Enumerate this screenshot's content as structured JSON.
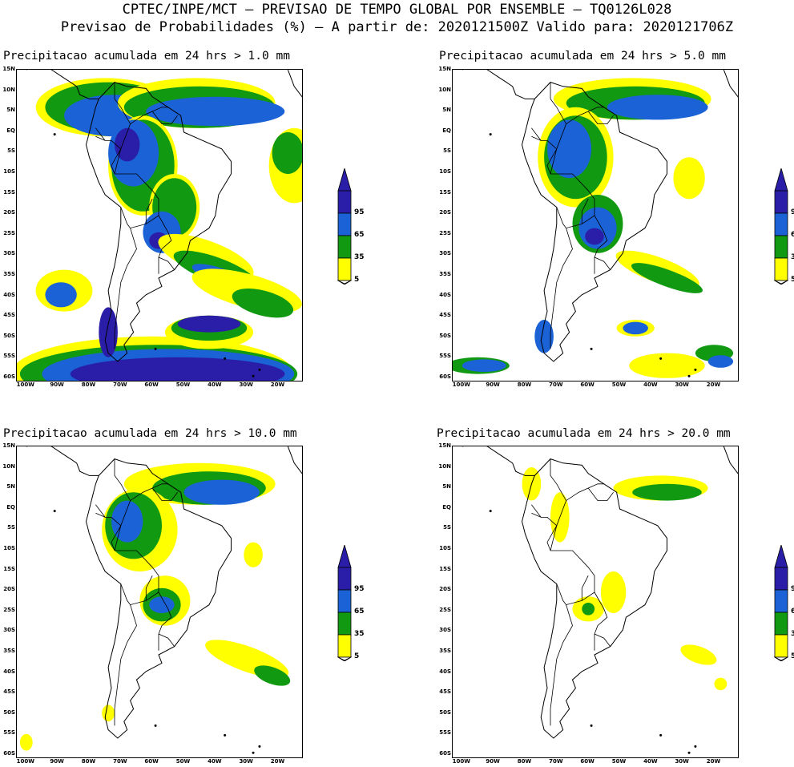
{
  "header": {
    "line1": "CPTEC/INPE/MCT — PREVISAO DE TEMPO GLOBAL POR ENSEMBLE — TQ0126L028",
    "line2": "Previsao de Probabilidades (%) —  A partir de: 2020121500Z  Valido para: 2020121706Z"
  },
  "lat_labels": [
    "15N",
    "10N",
    "5N",
    "EQ",
    "5S",
    "10S",
    "15S",
    "20S",
    "25S",
    "30S",
    "35S",
    "40S",
    "45S",
    "50S",
    "55S",
    "60S"
  ],
  "lon_labels": [
    "100W",
    "90W",
    "80W",
    "70W",
    "60W",
    "50W",
    "40W",
    "30W",
    "20W"
  ],
  "legend_levels": [
    "95",
    "65",
    "35",
    "5"
  ],
  "colors": {
    "level_5": "#ffff00",
    "level_35": "#119911",
    "level_65": "#1a62d6",
    "level_95": "#2a1ea8",
    "coast": "#000000"
  },
  "panels": [
    {
      "title": "Precipitacao acumulada em 24 hrs > 1.0 mm"
    },
    {
      "title": "Precipitacao acumulada em 24 hrs > 5.0 mm"
    },
    {
      "title": "Precipitacao acumulada em 24 hrs > 10.0 mm"
    },
    {
      "title": "Precipitacao acumulada em 24 hrs > 20.0 mm"
    }
  ]
}
